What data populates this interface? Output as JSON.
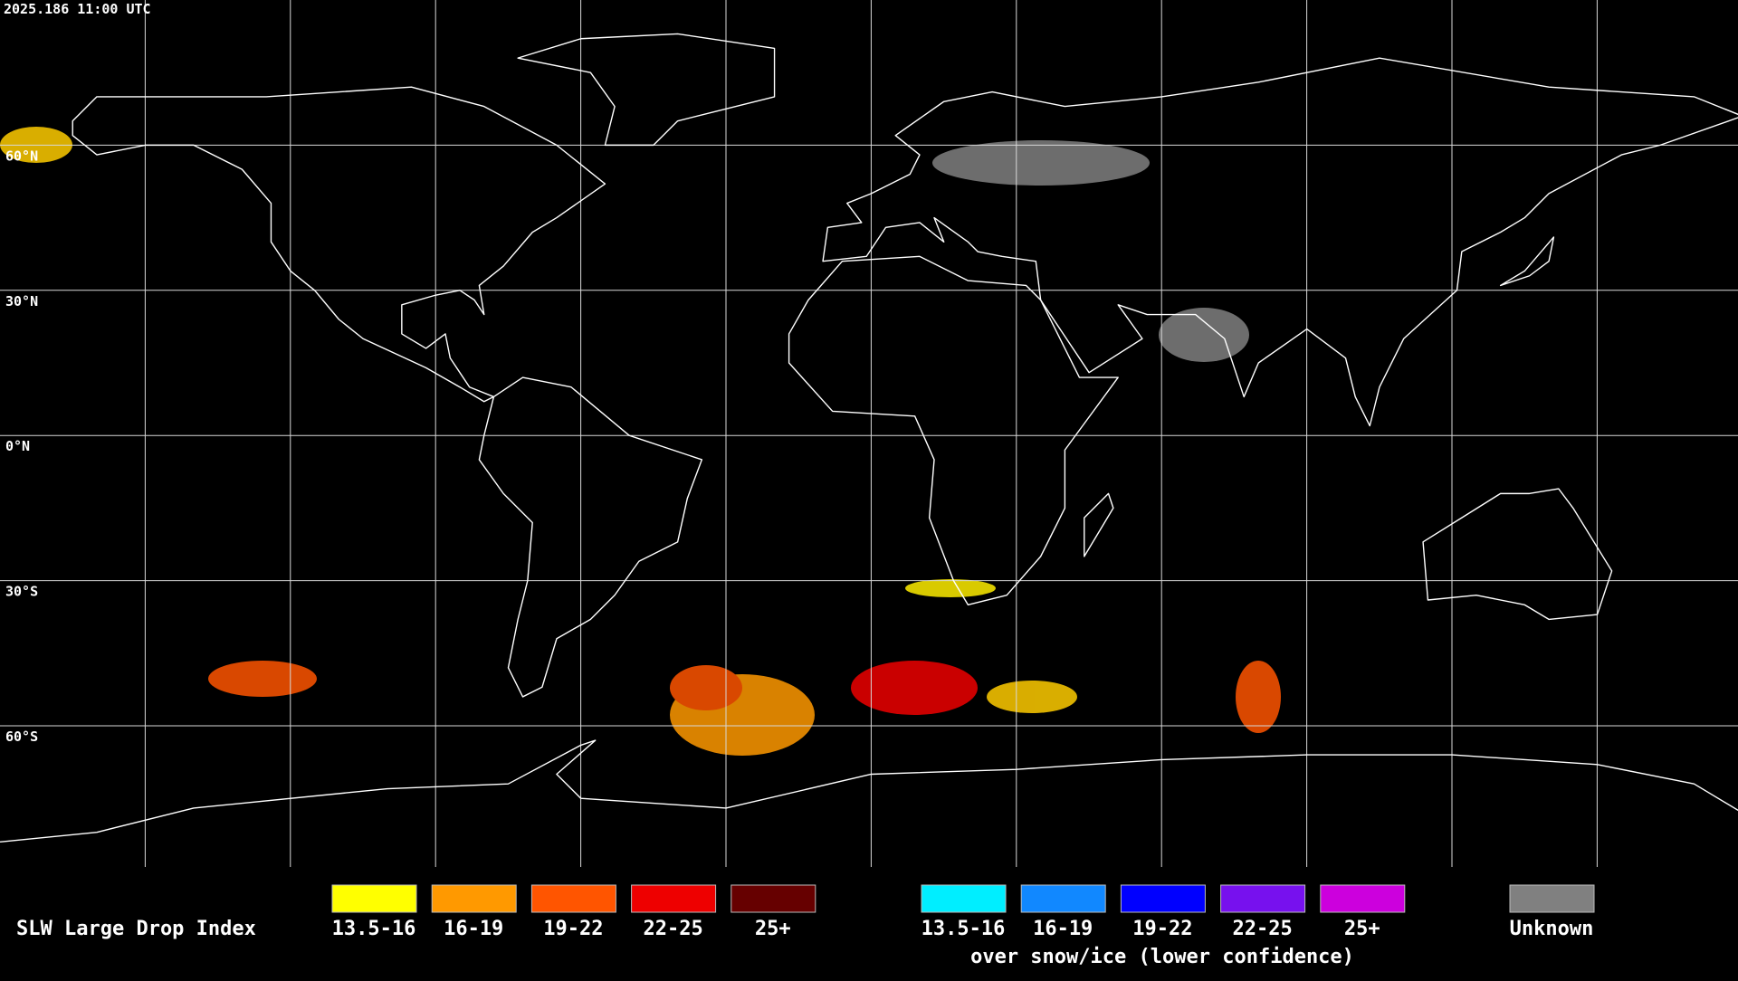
{
  "header": {
    "timestamp": "2025.186 11:00 UTC"
  },
  "map": {
    "latitude_labels": [
      "60°N",
      "30°N",
      "0°N",
      "30°S",
      "60°S"
    ]
  },
  "legend": {
    "title": "SLW Large Drop Index",
    "items": [
      {
        "label": "13.5-16",
        "color": "#ffff00"
      },
      {
        "label": "16-19",
        "color": "#ff9900"
      },
      {
        "label": "19-22",
        "color": "#ff5500"
      },
      {
        "label": "22-25",
        "color": "#ee0000"
      },
      {
        "label": "25+",
        "color": "#660000"
      }
    ],
    "snow_items": [
      {
        "label": "13.5-16",
        "color": "#00eeff"
      },
      {
        "label": "16-19",
        "color": "#1188ff"
      },
      {
        "label": "19-22",
        "color": "#0000ff"
      },
      {
        "label": "22-25",
        "color": "#7711ee"
      },
      {
        "label": "25+",
        "color": "#cc00dd"
      }
    ],
    "snow_caption": "over snow/ice (lower confidence)",
    "unknown": {
      "label": "Unknown",
      "color": "#808080"
    }
  }
}
